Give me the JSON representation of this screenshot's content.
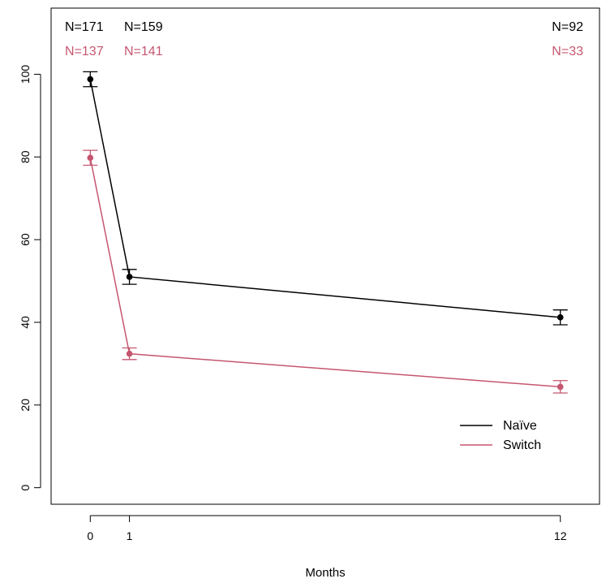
{
  "chart_data": {
    "type": "line",
    "title": "",
    "xlabel": "Months",
    "ylabel": "",
    "x": [
      0,
      1,
      12
    ],
    "x_ticks": [
      "0",
      "1",
      "12"
    ],
    "xlim": [
      -1,
      13
    ],
    "ylim": [
      -4,
      116
    ],
    "y_ticks": [
      "0",
      "20",
      "40",
      "60",
      "80",
      "100"
    ],
    "grid": false,
    "legend": "bottom-right",
    "series": [
      {
        "name": "Naïve",
        "color": "#000000",
        "values": [
          98.8,
          51.0,
          41.2
        ],
        "err_low": [
          97.0,
          49.2,
          39.4
        ],
        "err_high": [
          100.6,
          52.8,
          43.0
        ],
        "n_labels": [
          "N=171",
          "N=159",
          "N=92"
        ]
      },
      {
        "name": "Switch",
        "color": "#c5566f",
        "values": [
          79.8,
          32.4,
          24.4
        ],
        "err_low": [
          78.0,
          31.0,
          22.9
        ],
        "err_high": [
          81.6,
          33.8,
          25.9
        ],
        "n_labels": [
          "N=137",
          "N=141",
          "N=33"
        ]
      }
    ]
  }
}
